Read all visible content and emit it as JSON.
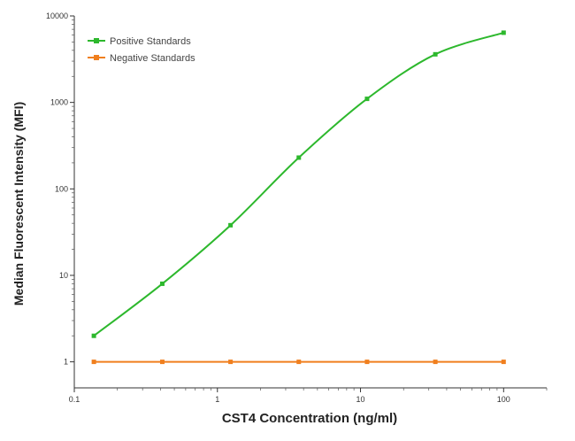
{
  "chart_data": {
    "type": "line",
    "xlabel": "CST4 Concentration (ng/ml)",
    "ylabel": "Median  Fluorescent Intensity  (MFI)",
    "x_scale": "log",
    "y_scale": "log",
    "xlim": [
      0.1,
      200
    ],
    "ylim": [
      0.5,
      10000
    ],
    "x_ticks": [
      0.1,
      1,
      10,
      100
    ],
    "x_tick_labels": [
      "0.1",
      "1",
      "10",
      "100"
    ],
    "y_ticks": [
      1,
      10,
      100,
      1000,
      10000
    ],
    "y_tick_labels": [
      "1",
      "10",
      "100",
      "1000",
      "10000"
    ],
    "grid": false,
    "legend_position": "top-left",
    "series": [
      {
        "name": "Positive Standards",
        "color": "#2db82d",
        "x": [
          0.137,
          0.412,
          1.235,
          3.704,
          11.11,
          33.33,
          100
        ],
        "y": [
          2,
          8,
          38,
          230,
          1100,
          3600,
          6400
        ]
      },
      {
        "name": "Negative Standards",
        "color": "#f07f1e",
        "x": [
          0.137,
          0.412,
          1.235,
          3.704,
          11.11,
          33.33,
          100
        ],
        "y": [
          1,
          1,
          1,
          1,
          1,
          1,
          1
        ]
      }
    ]
  }
}
